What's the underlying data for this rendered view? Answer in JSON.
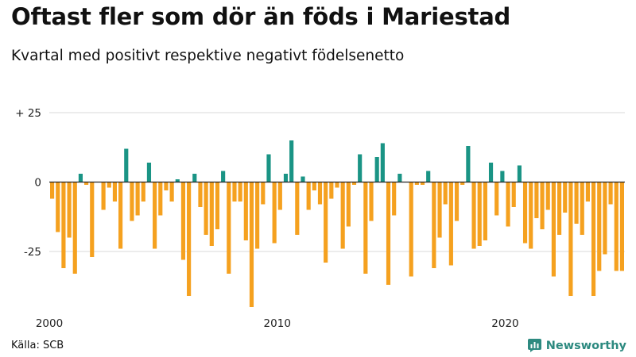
{
  "header": {
    "title": "Oftast fler som dör än föds i Mariestad",
    "subtitle": "Kvartal med positivt respektive negativt födelsenetto"
  },
  "footer": {
    "source": "Källa: SCB",
    "brand": "Newsworthy"
  },
  "colors": {
    "positive": "#1a9485",
    "negative": "#f5a11f",
    "brand": "#2d8a80"
  },
  "chart_data": {
    "type": "bar",
    "title": "Oftast fler som dör än föds i Mariestad",
    "subtitle": "Kvartal med positivt respektive negativt födelsenetto",
    "xlabel": "",
    "ylabel": "",
    "ylim": [
      -47,
      27
    ],
    "y_ticks": [
      {
        "value": 25,
        "label": "+ 25"
      },
      {
        "value": 0,
        "label": "0"
      },
      {
        "value": -25,
        "label": "-25"
      }
    ],
    "x_ticks": [
      {
        "quarter_index": 0,
        "label": "2000"
      },
      {
        "quarter_index": 40,
        "label": "2010"
      },
      {
        "quarter_index": 80,
        "label": "2020"
      }
    ],
    "start": "2000 Q1",
    "values": [
      -6,
      -18,
      -31,
      -20,
      -33,
      3,
      -1,
      -27,
      0,
      -10,
      -2,
      -7,
      -24,
      12,
      -14,
      -12,
      -7,
      7,
      -24,
      -12,
      -3,
      -7,
      1,
      -28,
      -41,
      3,
      -9,
      -19,
      -23,
      -17,
      4,
      -33,
      -7,
      -7,
      -21,
      -45,
      -24,
      -8,
      10,
      -22,
      -10,
      3,
      15,
      -19,
      2,
      -10,
      -3,
      -8,
      -29,
      -6,
      -2,
      -24,
      -16,
      -1,
      10,
      -33,
      -14,
      9,
      14,
      -37,
      -12,
      3,
      0,
      -34,
      -1,
      -1,
      4,
      -31,
      -20,
      -8,
      -30,
      -14,
      -1,
      13,
      -24,
      -23,
      -21,
      7,
      -12,
      4,
      -16,
      -9,
      6,
      -22,
      -24,
      -13,
      -17,
      -10,
      -34,
      -19,
      -11,
      -41,
      -15,
      -19,
      -7,
      -41,
      -32,
      -26,
      -8,
      -32,
      -32
    ]
  }
}
